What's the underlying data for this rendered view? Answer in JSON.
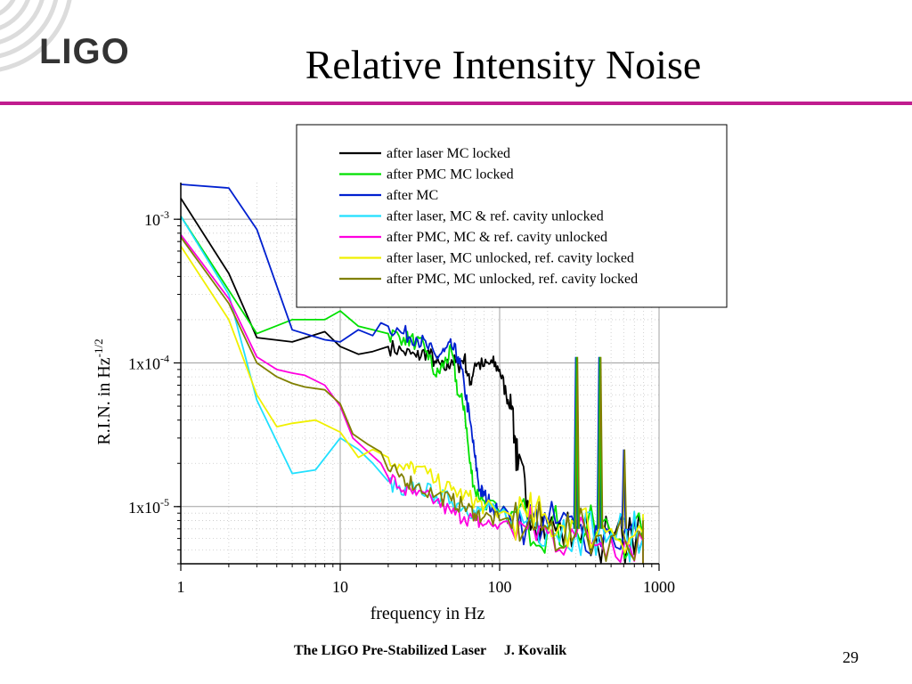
{
  "slide": {
    "logo_text": "LIGO",
    "title": "Relative Intensity Noise",
    "footer": "The LIGO Pre-Stabilized Laser     J. Kovalik",
    "page_number": "29",
    "accent_color": "#c01c8e",
    "logo_icon": "ligo-swirl-icon"
  },
  "chart_data": {
    "type": "line",
    "xlabel": "frequency in Hz",
    "ylabel_main": "R.I.N. in Hz",
    "ylabel_exponent": "-1/2",
    "x_scale": "log",
    "y_scale": "log",
    "xlim": [
      1,
      1000
    ],
    "ylim": [
      4e-06,
      0.0018
    ],
    "grid": true,
    "legend_position": "top-right",
    "x_ticks": [
      {
        "value": 1,
        "label": "1"
      },
      {
        "value": 10,
        "label": "10"
      },
      {
        "value": 100,
        "label": "100"
      },
      {
        "value": 1000,
        "label": "1000"
      }
    ],
    "y_ticks": [
      {
        "value": 0.001,
        "base": "10",
        "exp": "-3"
      },
      {
        "value": 0.0001,
        "base": "1x10",
        "exp": "-4"
      },
      {
        "value": 1e-05,
        "base": "1x10",
        "exp": "-5"
      }
    ],
    "series": [
      {
        "name": "after laser  MC locked",
        "color": "#000000",
        "x": [
          1,
          2,
          3,
          5,
          8,
          10,
          13,
          16,
          20,
          25,
          30,
          35,
          40,
          45,
          50,
          55,
          60,
          65,
          70,
          80,
          90,
          100,
          110,
          120,
          130,
          150,
          200,
          300,
          500,
          800,
          1000
        ],
        "y": [
          0.0014,
          0.00042,
          0.00015,
          0.00014,
          0.000165,
          0.00013,
          0.000115,
          0.00012,
          0.00013,
          0.00012,
          0.00011,
          0.00012,
          0.0001,
          9e-05,
          0.000105,
          9.5e-05,
          0.00011,
          7e-05,
          0.0001,
          9.5e-05,
          0.0001,
          9e-05,
          6e-05,
          5e-05,
          1.8e-05,
          1.1e-05,
          7e-06,
          6.5e-06,
          6e-06,
          6e-06,
          5.5e-06
        ]
      },
      {
        "name": "after PMC MC locked",
        "color": "#00e000",
        "x": [
          1,
          2,
          3,
          5,
          8,
          10,
          13,
          16,
          20,
          25,
          30,
          35,
          40,
          45,
          50,
          55,
          60,
          65,
          70,
          80,
          100,
          150,
          200,
          300,
          500,
          800,
          1000
        ],
        "y": [
          0.00105,
          0.00032,
          0.00016,
          0.0002,
          0.0002,
          0.00023,
          0.00018,
          0.00017,
          0.00016,
          0.00015,
          0.00014,
          0.00012,
          8e-05,
          0.0001,
          0.00012,
          6e-05,
          5e-05,
          2e-05,
          1.3e-05,
          1.1e-05,
          9e-06,
          8e-06,
          7e-06,
          7e-06,
          6.5e-06,
          6e-06,
          5.5e-06
        ]
      },
      {
        "name": "after MC",
        "color": "#0020d0",
        "x": [
          1,
          2,
          3,
          5,
          8,
          10,
          13,
          16,
          18,
          20,
          25,
          30,
          35,
          40,
          45,
          50,
          55,
          60,
          65,
          70,
          75,
          80,
          90,
          100,
          150,
          200,
          300,
          500,
          800,
          1000
        ],
        "y": [
          0.00175,
          0.00165,
          0.00085,
          0.00017,
          0.000145,
          0.00014,
          0.00017,
          0.000155,
          0.00019,
          0.00018,
          0.00016,
          0.00015,
          0.00013,
          0.00011,
          0.00012,
          0.00013,
          0.00011,
          7e-05,
          4e-05,
          2.2e-05,
          1.3e-05,
          1.2e-05,
          1e-05,
          9e-06,
          8e-06,
          7.5e-06,
          7e-06,
          6.5e-06,
          6e-06,
          5.5e-06
        ]
      },
      {
        "name": "after laser, MC & ref. cavity unlocked",
        "color": "#20e0ff",
        "x": [
          1,
          2,
          3,
          5,
          7,
          10,
          13,
          16,
          20,
          25,
          30,
          40,
          50,
          60,
          70,
          80,
          100,
          150,
          200,
          300,
          500,
          800,
          1000
        ],
        "y": [
          0.00105,
          0.0003,
          5.5e-05,
          1.7e-05,
          1.8e-05,
          3e-05,
          2.5e-05,
          2e-05,
          1.5e-05,
          1.2e-05,
          1.4e-05,
          1.2e-05,
          1.1e-05,
          1e-05,
          9e-06,
          9.5e-06,
          9e-06,
          8e-06,
          7.5e-06,
          7e-06,
          6.5e-06,
          6e-06,
          5.5e-06
        ]
      },
      {
        "name": "after PMC, MC & ref. cavity unlocked",
        "color": "#ff00e0",
        "x": [
          1,
          2,
          3,
          4,
          5,
          6,
          8,
          10,
          12,
          15,
          18,
          20,
          25,
          30,
          40,
          50,
          60,
          70,
          80,
          100,
          150,
          200,
          300,
          500,
          800,
          1000
        ],
        "y": [
          0.00078,
          0.00028,
          0.00011,
          9e-05,
          8.5e-05,
          8.2e-05,
          7e-05,
          5e-05,
          3e-05,
          2.4e-05,
          2e-05,
          1.6e-05,
          1.3e-05,
          1.2e-05,
          1.1e-05,
          9e-06,
          8.5e-06,
          8e-06,
          7.5e-06,
          7.5e-06,
          7e-06,
          6.5e-06,
          6.2e-06,
          6e-06,
          5.8e-06,
          5.5e-06
        ]
      },
      {
        "name": "after laser, MC unlocked, ref. cavity locked",
        "color": "#f0f000",
        "x": [
          1,
          2,
          3,
          4,
          5,
          7,
          10,
          13,
          16,
          20,
          25,
          30,
          40,
          50,
          60,
          70,
          80,
          100,
          150,
          200,
          300,
          500,
          800,
          1000
        ],
        "y": [
          0.00065,
          0.0002,
          6e-05,
          3.6e-05,
          3.8e-05,
          4e-05,
          3.3e-05,
          2.2e-05,
          2.5e-05,
          2.2e-05,
          1.8e-05,
          1.9e-05,
          1.5e-05,
          1.3e-05,
          1.2e-05,
          1.1e-05,
          1e-05,
          9e-06,
          8.5e-06,
          8e-06,
          7.5e-06,
          7e-06,
          6.5e-06,
          6e-06
        ]
      },
      {
        "name": "after PMC, MC unlocked, ref. cavity locked",
        "color": "#808000",
        "x": [
          1,
          2,
          3,
          4,
          5,
          6,
          8,
          10,
          12,
          15,
          18,
          20,
          25,
          30,
          40,
          50,
          60,
          70,
          80,
          100,
          150,
          200,
          300,
          500,
          800,
          1000
        ],
        "y": [
          0.00075,
          0.00026,
          0.0001,
          8e-05,
          7.2e-05,
          6.8e-05,
          6.5e-05,
          5.2e-05,
          3.2e-05,
          2.7e-05,
          2.4e-05,
          1.8e-05,
          1.6e-05,
          1.4e-05,
          1.2e-05,
          1.1e-05,
          1e-05,
          9e-06,
          8.5e-06,
          8e-06,
          7.5e-06,
          7e-06,
          6.5e-06,
          6.2e-06,
          6e-06,
          5.5e-06
        ]
      }
    ],
    "peaks": [
      {
        "x": 300,
        "y": 0.00011,
        "colors": [
          "#0020d0",
          "#00e000",
          "#808000"
        ]
      },
      {
        "x": 420,
        "y": 0.00011,
        "colors": [
          "#0020d0",
          "#00e000",
          "#808000"
        ]
      },
      {
        "x": 600,
        "y": 2.5e-05,
        "colors": [
          "#0020d0",
          "#808000"
        ]
      }
    ]
  }
}
